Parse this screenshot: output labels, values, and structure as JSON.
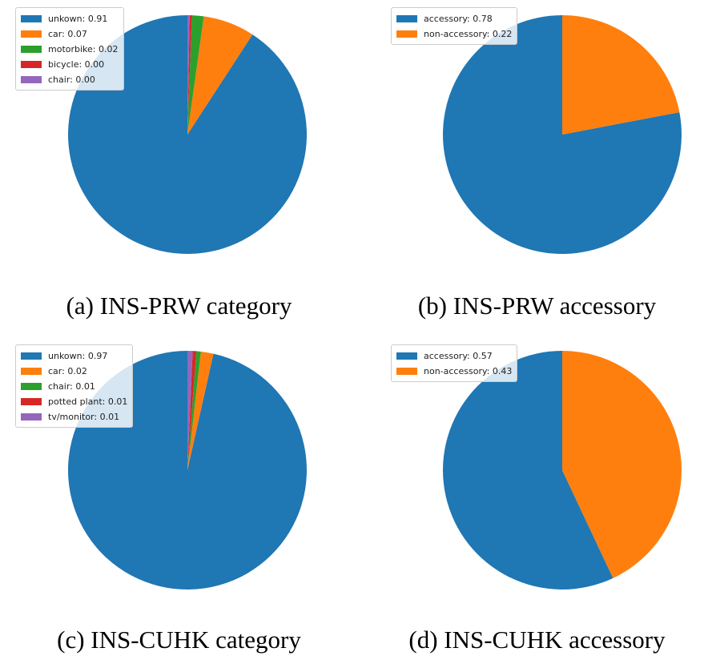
{
  "chart_data": [
    {
      "type": "pie",
      "caption": "(a) INS-PRW category",
      "start_angle": 90,
      "direction": "counterclockwise",
      "legend_position": "upper-left",
      "slices": [
        {
          "label": "unkown",
          "value_text": "0.91",
          "value": 0.91,
          "color": "#1f77b4"
        },
        {
          "label": "car",
          "value_text": "0.07",
          "value": 0.07,
          "color": "#ff7f0e"
        },
        {
          "label": "motorbike",
          "value_text": "0.02",
          "value": 0.016,
          "color": "#2ca02c"
        },
        {
          "label": "bicycle",
          "value_text": "0.00",
          "value": 0.003,
          "color": "#d62728"
        },
        {
          "label": "chair",
          "value_text": "0.00",
          "value": 0.003,
          "color": "#9467bd"
        }
      ]
    },
    {
      "type": "pie",
      "caption": "(b) INS-PRW accessory",
      "start_angle": 90,
      "direction": "counterclockwise",
      "legend_position": "upper-left",
      "slices": [
        {
          "label": "accessory",
          "value_text": "0.78",
          "value": 0.78,
          "color": "#1f77b4"
        },
        {
          "label": "non-accessory",
          "value_text": "0.22",
          "value": 0.22,
          "color": "#ff7f0e"
        }
      ]
    },
    {
      "type": "pie",
      "caption": "(c) INS-CUHK category",
      "start_angle": 90,
      "direction": "counterclockwise",
      "legend_position": "upper-left",
      "slices": [
        {
          "label": "unkown",
          "value_text": "0.97",
          "value": 0.965,
          "color": "#1f77b4"
        },
        {
          "label": "car",
          "value_text": "0.02",
          "value": 0.017,
          "color": "#ff7f0e"
        },
        {
          "label": "chair",
          "value_text": "0.01",
          "value": 0.006,
          "color": "#2ca02c"
        },
        {
          "label": "potted plant",
          "value_text": "0.01",
          "value": 0.005,
          "color": "#d62728"
        },
        {
          "label": "tv/monitor",
          "value_text": "0.01",
          "value": 0.007,
          "color": "#9467bd"
        }
      ]
    },
    {
      "type": "pie",
      "caption": "(d) INS-CUHK accessory",
      "start_angle": 90,
      "direction": "counterclockwise",
      "legend_position": "upper-left",
      "slices": [
        {
          "label": "accessory",
          "value_text": "0.57",
          "value": 0.57,
          "color": "#1f77b4"
        },
        {
          "label": "non-accessory",
          "value_text": "0.43",
          "value": 0.43,
          "color": "#ff7f0e"
        }
      ]
    }
  ]
}
